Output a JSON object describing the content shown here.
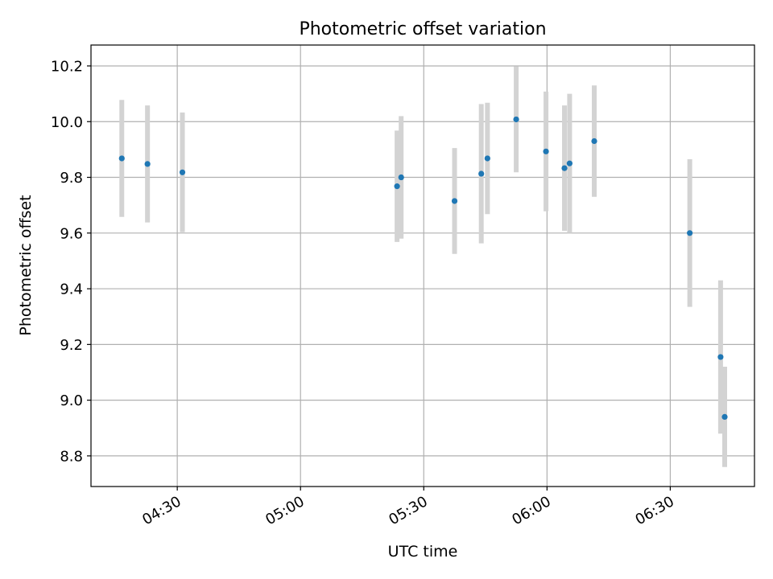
{
  "chart_data": {
    "type": "scatter",
    "title": "Photometric offset variation",
    "xlabel": "UTC time",
    "ylabel": "Photometric offset",
    "x_unit": "UTC time (HH:MM:SS)",
    "xlim": [
      "04:09:00",
      "06:50:30"
    ],
    "ylim": [
      8.69,
      10.275
    ],
    "x_ticks": [
      "04:30",
      "05:00",
      "05:30",
      "06:00",
      "06:30"
    ],
    "y_ticks": [
      "8.8",
      "9.0",
      "9.2",
      "9.4",
      "9.6",
      "9.8",
      "10.0",
      "10.2"
    ],
    "grid": true,
    "marker_color": "#1f77b4",
    "errorbar_color": "#d3d3d3",
    "points": [
      {
        "t": "04:16:30",
        "y": 9.868,
        "err": 0.21
      },
      {
        "t": "04:22:45",
        "y": 9.848,
        "err": 0.21
      },
      {
        "t": "04:31:15",
        "y": 9.818,
        "err": 0.215
      },
      {
        "t": "05:23:30",
        "y": 9.768,
        "err": 0.2
      },
      {
        "t": "05:24:30",
        "y": 9.8,
        "err": 0.22
      },
      {
        "t": "05:37:30",
        "y": 9.715,
        "err": 0.19
      },
      {
        "t": "05:44:00",
        "y": 9.813,
        "err": 0.25
      },
      {
        "t": "05:45:30",
        "y": 9.868,
        "err": 0.2
      },
      {
        "t": "05:52:30",
        "y": 10.008,
        "err": 0.19
      },
      {
        "t": "05:59:45",
        "y": 9.893,
        "err": 0.215
      },
      {
        "t": "06:04:15",
        "y": 9.833,
        "err": 0.225
      },
      {
        "t": "06:05:30",
        "y": 9.85,
        "err": 0.25
      },
      {
        "t": "06:11:30",
        "y": 9.93,
        "err": 0.2
      },
      {
        "t": "06:34:45",
        "y": 9.6,
        "err": 0.265
      },
      {
        "t": "06:42:15",
        "y": 9.155,
        "err": 0.275
      },
      {
        "t": "06:43:15",
        "y": 8.94,
        "err": 0.18
      }
    ]
  }
}
